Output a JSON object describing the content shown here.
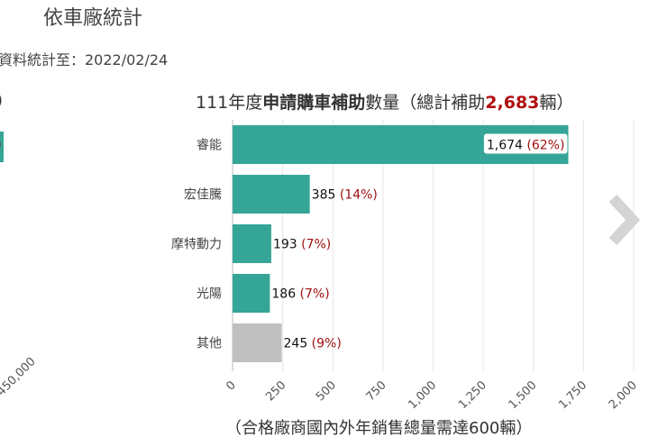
{
  "page": {
    "title": "依車廠統計",
    "stats_date": "資料統計至：2022/02/24"
  },
  "left_chart_fragment": {
    "paren": ")",
    "bar_label": ")",
    "tick_label": "450,000"
  },
  "chart_title": {
    "prefix": "111年度",
    "bold": "申請購車補助",
    "middle": "數量（總計補助",
    "total": "2,683",
    "suffix": "輛）"
  },
  "x_caption": "（合格廠商國內外年銷售總量需達600輛）",
  "colors": {
    "bar": "#35a597",
    "bar_other": "#c0c0c0",
    "percent": "#a01010",
    "accent": "#b01010"
  },
  "chart_data": {
    "type": "bar",
    "orientation": "horizontal",
    "categories": [
      "睿能",
      "宏佳騰",
      "摩特動力",
      "光陽",
      "其他"
    ],
    "values": [
      1674,
      385,
      193,
      186,
      245
    ],
    "value_labels": [
      "1,674",
      "385",
      "193",
      "186",
      "245"
    ],
    "percent_labels": [
      "(62%)",
      "(14%)",
      "(7%)",
      "(7%)",
      "(9%)"
    ],
    "xlim": [
      0,
      2000
    ],
    "xticks": [
      0,
      250,
      500,
      750,
      1000,
      1250,
      1500,
      1750,
      2000
    ],
    "xtick_labels": [
      "0",
      "250",
      "500",
      "750",
      "1,000",
      "1,250",
      "1,500",
      "1,750",
      "2,000"
    ],
    "grid": true
  },
  "icons": {
    "next": "chevron-right-icon"
  }
}
